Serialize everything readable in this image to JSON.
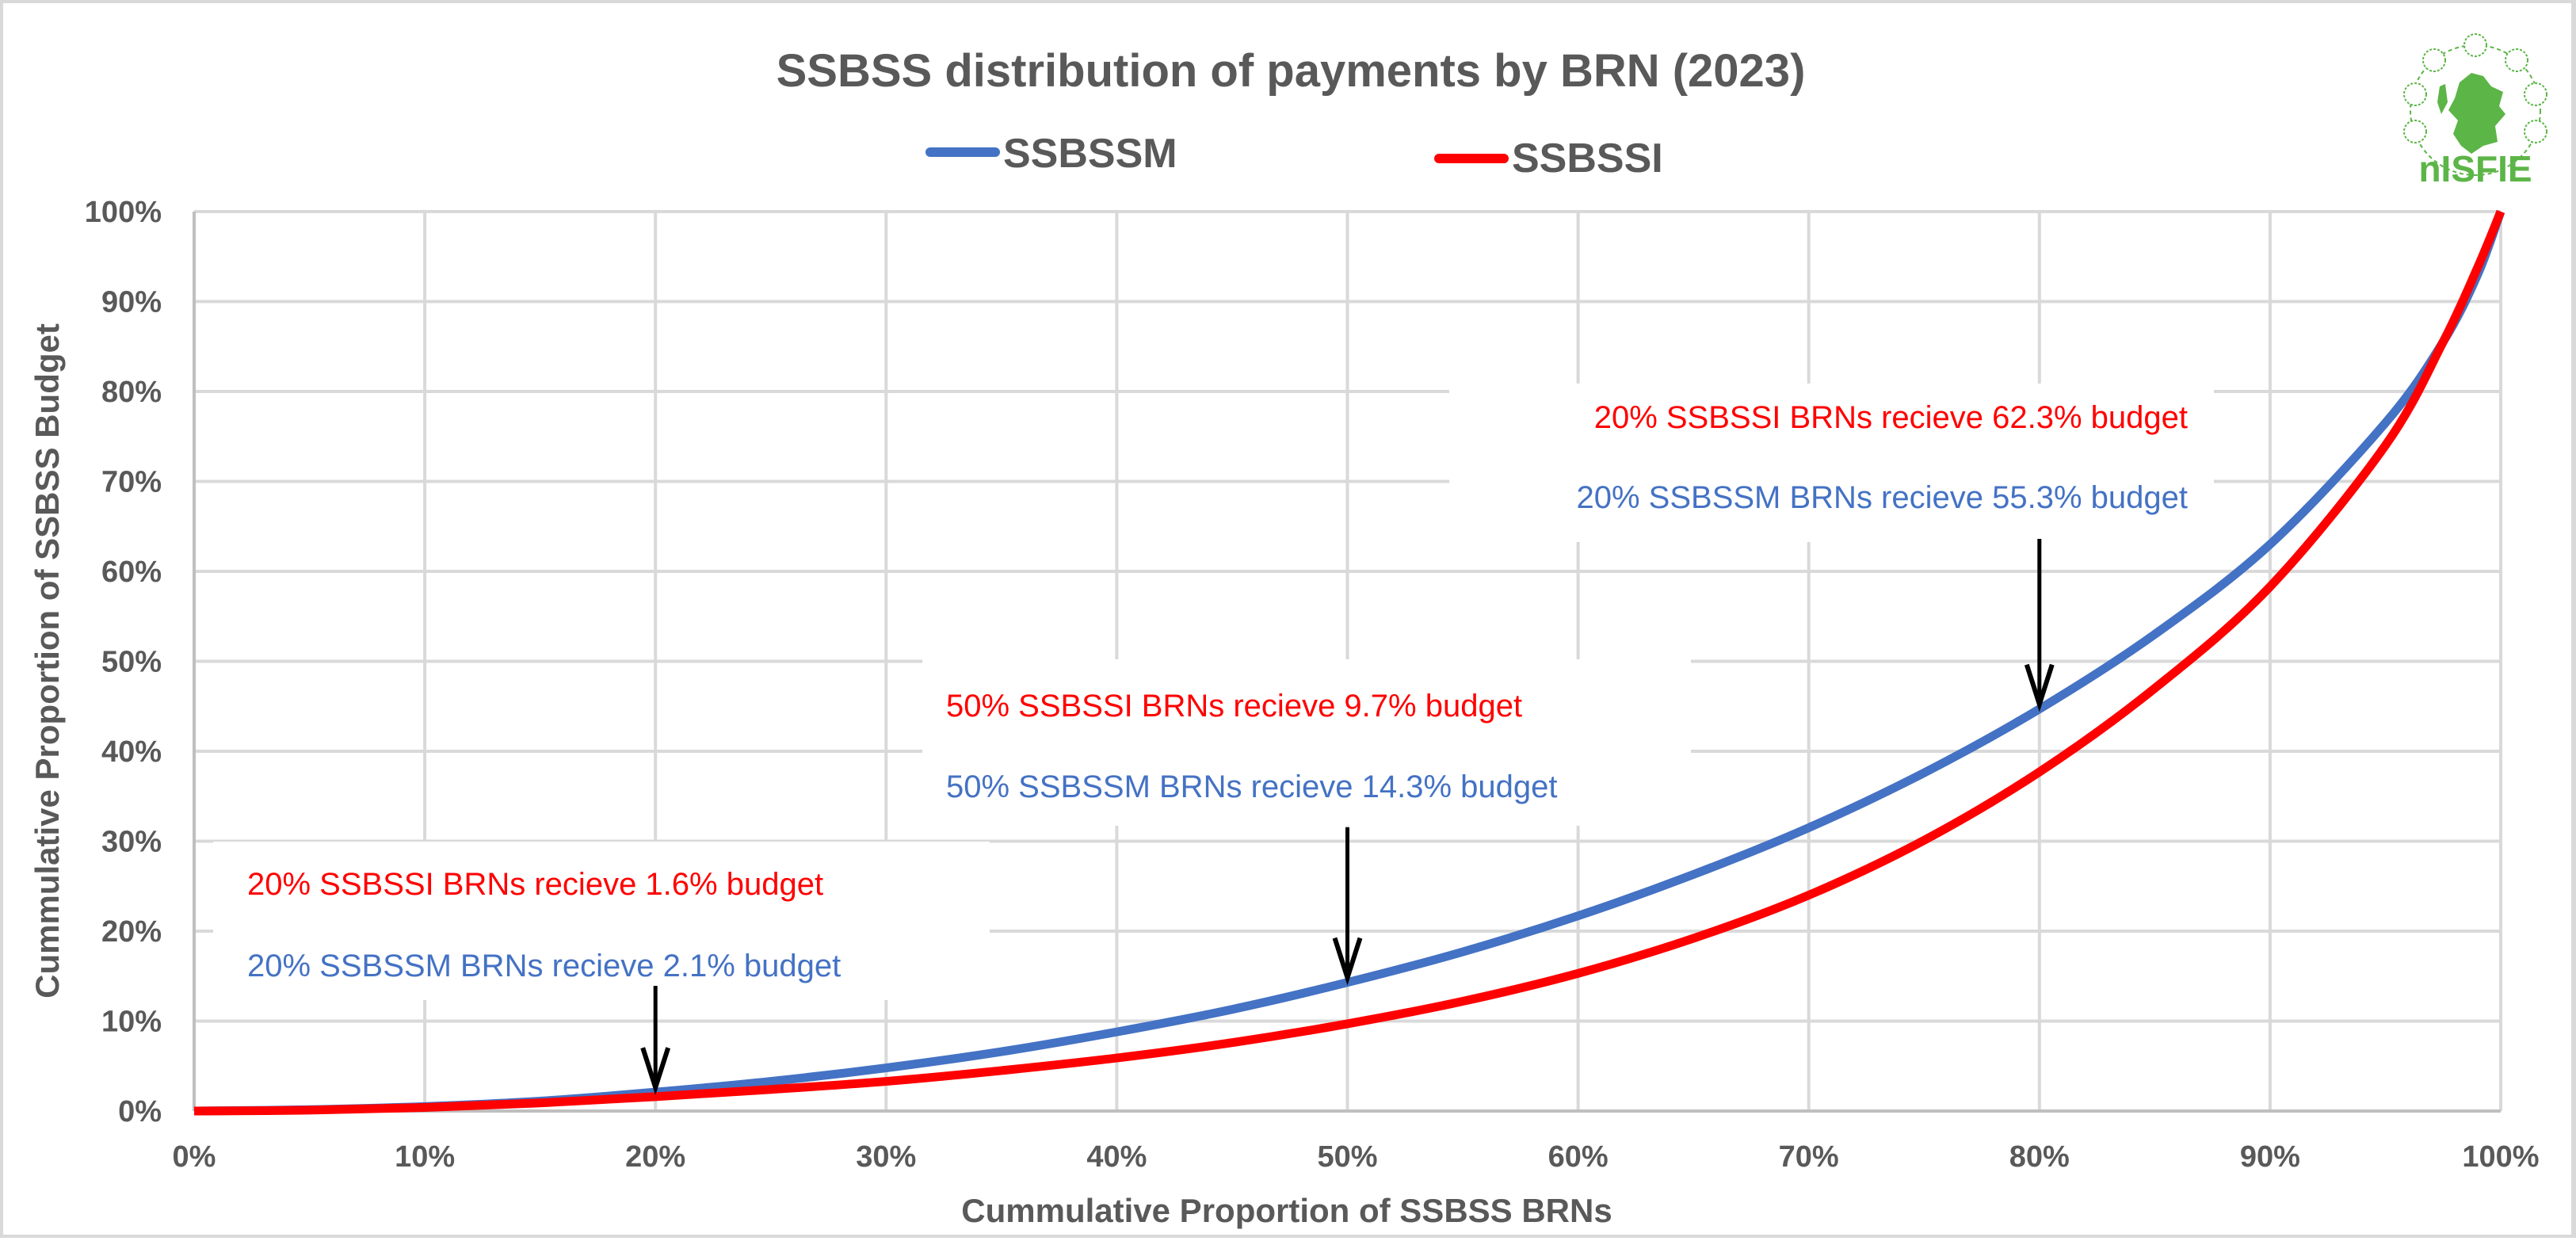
{
  "chart_data": {
    "type": "line",
    "title": "SSBSS distribution of payments by BRN (2023)",
    "xlabel": "Cummulative Proportion of SSBSS BRNs",
    "ylabel": "Cummulative Proportion of SSBSS Budget",
    "xlim": [
      0,
      100
    ],
    "ylim": [
      0,
      100
    ],
    "grid": true,
    "legend_position": "top-center",
    "x_ticks": [
      "0%",
      "10%",
      "20%",
      "30%",
      "40%",
      "50%",
      "60%",
      "70%",
      "80%",
      "90%",
      "100%"
    ],
    "y_ticks": [
      "0%",
      "10%",
      "20%",
      "30%",
      "40%",
      "50%",
      "60%",
      "70%",
      "80%",
      "90%",
      "100%"
    ],
    "x": [
      0,
      5,
      10,
      15,
      20,
      25,
      30,
      35,
      40,
      45,
      50,
      55,
      60,
      65,
      70,
      75,
      80,
      85,
      90,
      95,
      97.5,
      99,
      100
    ],
    "series": [
      {
        "name": "SSBSSM",
        "color": "#4472c4",
        "values": [
          0,
          0.15,
          0.5,
          1.1,
          2.1,
          3.3,
          4.8,
          6.6,
          8.8,
          11.3,
          14.3,
          17.7,
          21.7,
          26.3,
          31.5,
          37.6,
          44.7,
          53.0,
          63.0,
          76.5,
          85.5,
          93.0,
          100
        ]
      },
      {
        "name": "SSBSSI",
        "color": "#ff0000",
        "values": [
          0,
          0.1,
          0.4,
          0.9,
          1.6,
          2.4,
          3.3,
          4.5,
          5.9,
          7.6,
          9.7,
          12.2,
          15.3,
          19.2,
          24.0,
          30.1,
          37.7,
          47.0,
          58.3,
          74.0,
          85.5,
          93.8,
          100
        ]
      }
    ],
    "annotations": [
      {
        "x_value": 20,
        "lines": [
          {
            "text": "20% SSBSSI BRNs recieve 1.6% budget",
            "color": "#ff0000"
          },
          {
            "text": "20% SSBSSM BRNs recieve 2.1% budget",
            "color": "#4472c4"
          }
        ],
        "arrow_target_value": 2.1
      },
      {
        "x_value": 50,
        "lines": [
          {
            "text": "50% SSBSSI BRNs recieve 9.7% budget",
            "color": "#ff0000"
          },
          {
            "text": "50% SSBSSM BRNs recieve 14.3% budget",
            "color": "#4472c4"
          }
        ],
        "arrow_target_value": 14.3
      },
      {
        "x_value": 80,
        "lines": [
          {
            "text": "20% SSBSSI BRNs recieve 62.3% budget",
            "color": "#ff0000"
          },
          {
            "text": "20% SSBSSM BRNs recieve 55.3% budget",
            "color": "#4472c4"
          }
        ],
        "arrow_target_value": 44.7
      }
    ]
  },
  "logo": {
    "text": "nISFIE",
    "color": "#5cb547"
  }
}
